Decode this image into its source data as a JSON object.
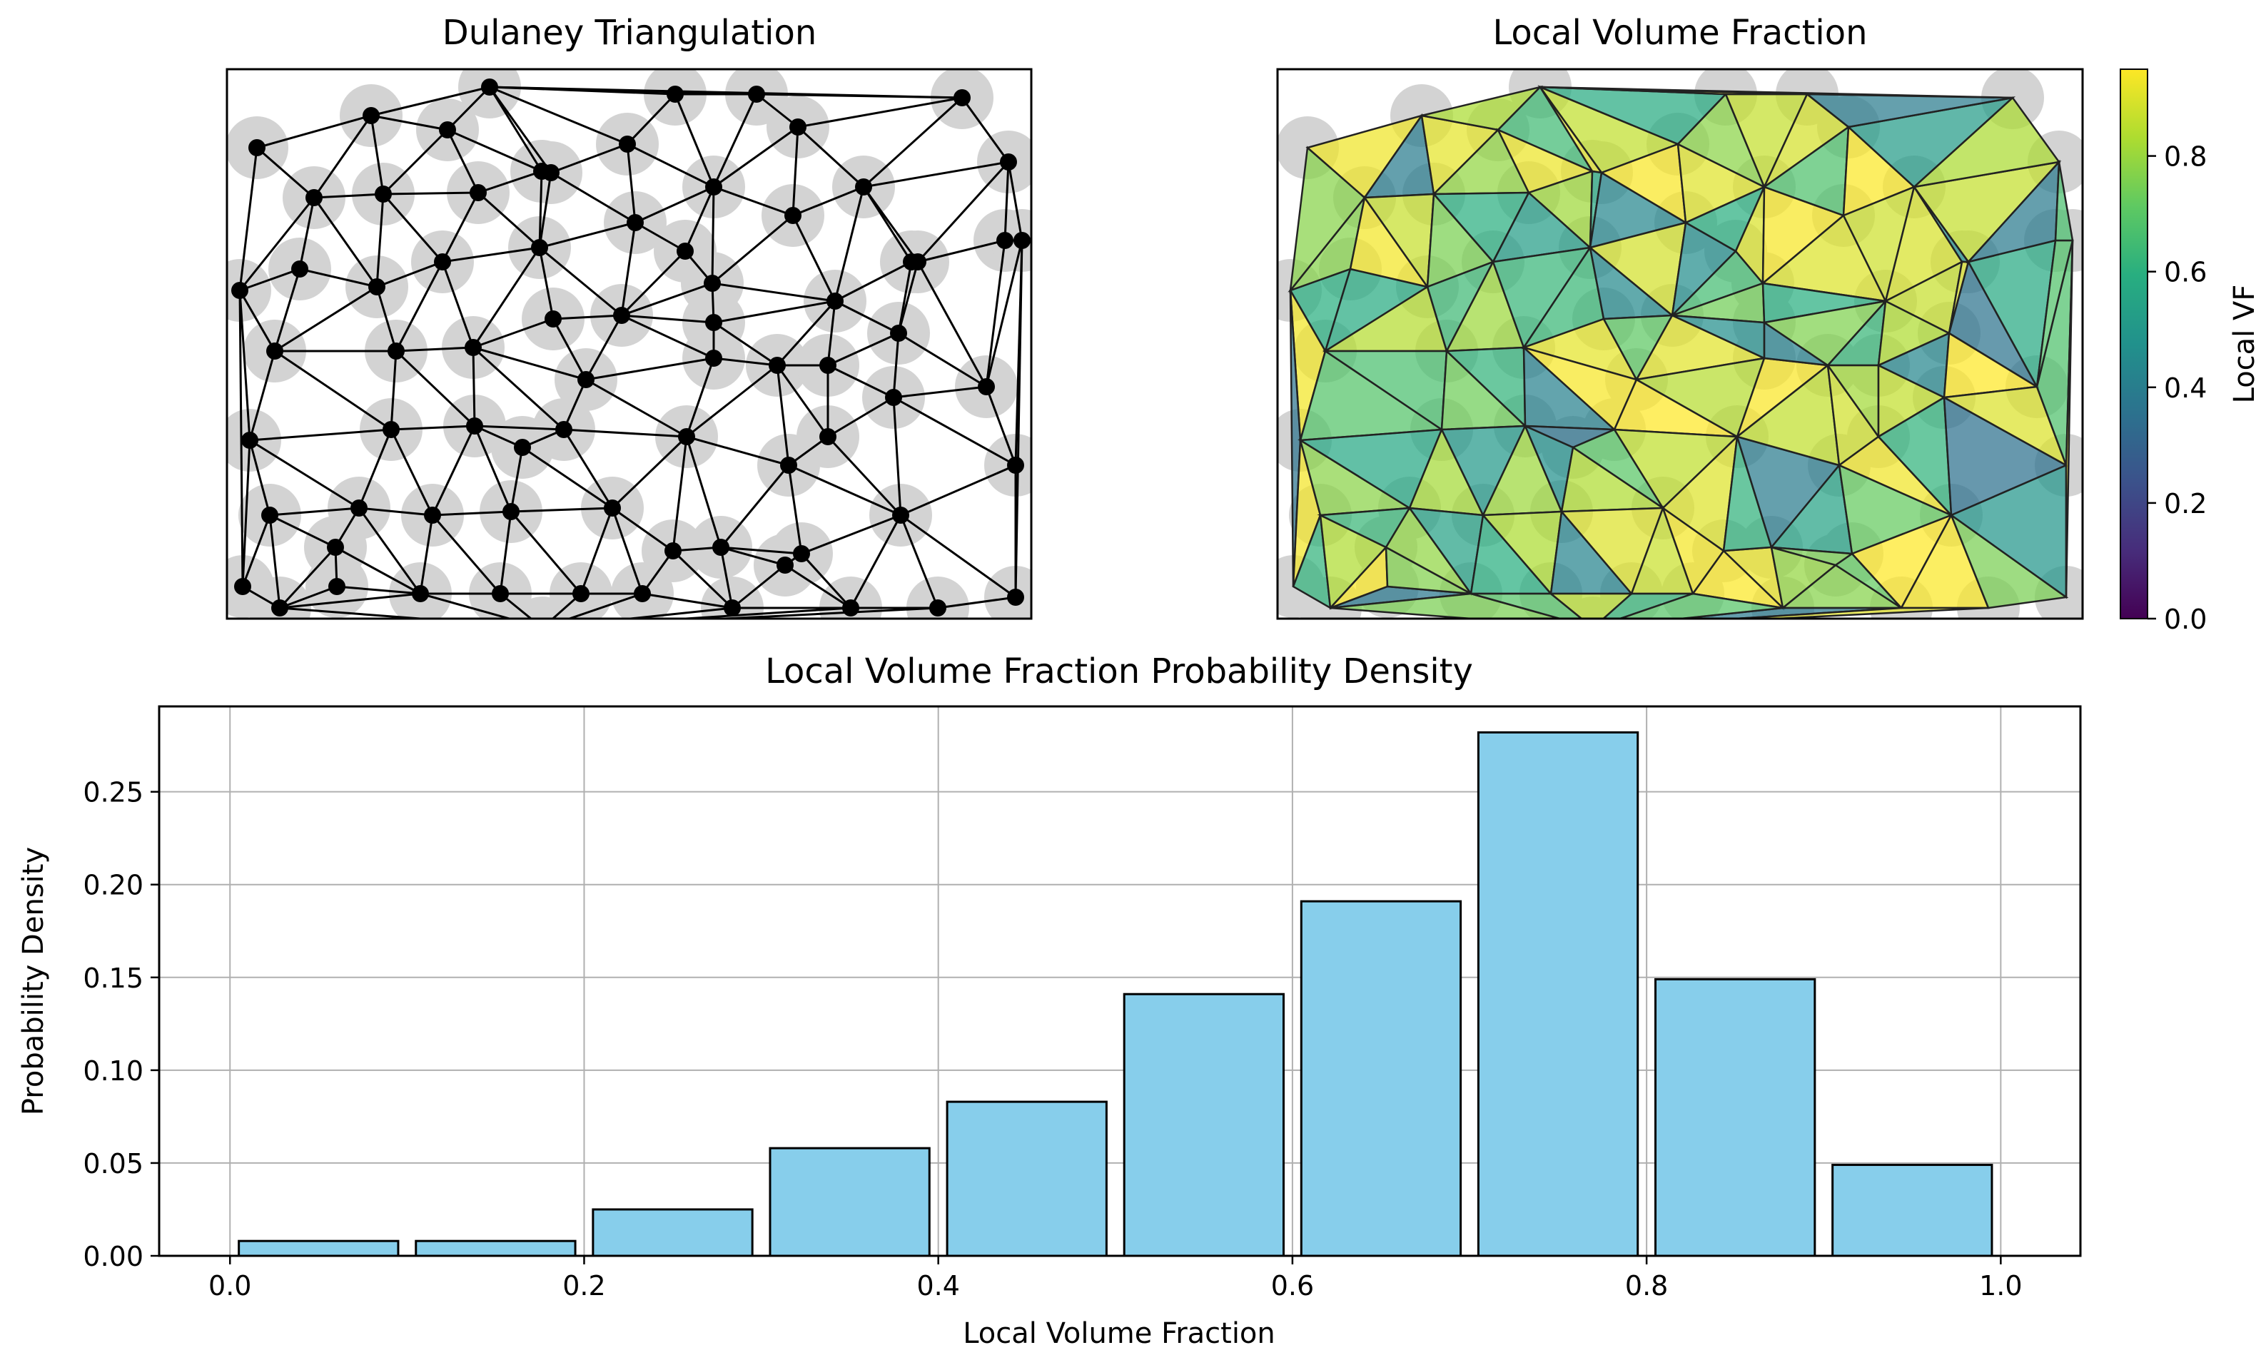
{
  "chart_data": [
    {
      "type": "network",
      "title": "Dulaney Triangulation",
      "xlabel": "",
      "ylabel": "",
      "colors": {
        "node": "#000000",
        "edge": "#000000",
        "particle": "#d3d3d3"
      }
    },
    {
      "type": "heatmap",
      "title": "Local Volume Fraction",
      "colorbar": {
        "label": "Local VF",
        "ticks": [
          "0.0",
          "0.2",
          "0.4",
          "0.6",
          "0.8"
        ],
        "range": [
          0,
          0.95
        ],
        "colormap": "viridis"
      }
    },
    {
      "type": "bar",
      "title": "Local Volume Fraction Probability Density",
      "xlabel": "Local Volume Fraction",
      "ylabel": "Probability Density",
      "bins": [
        [
          0.0,
          0.1
        ],
        [
          0.1,
          0.2
        ],
        [
          0.2,
          0.3
        ],
        [
          0.3,
          0.4
        ],
        [
          0.4,
          0.5
        ],
        [
          0.5,
          0.6
        ],
        [
          0.6,
          0.7
        ],
        [
          0.7,
          0.8
        ],
        [
          0.8,
          0.9
        ],
        [
          0.9,
          1.0
        ]
      ],
      "values": [
        0.008,
        0.008,
        0.025,
        0.058,
        0.083,
        0.141,
        0.191,
        0.282,
        0.149,
        0.049
      ],
      "xlim": [
        -0.04,
        1.045
      ],
      "ylim": [
        0,
        0.296
      ],
      "xticks": [
        "0.0",
        "0.2",
        "0.4",
        "0.6",
        "0.8",
        "1.0"
      ],
      "yticks": [
        "0.00",
        "0.05",
        "0.10",
        "0.15",
        "0.20",
        "0.25"
      ],
      "grid": true,
      "colors": {
        "bar": "#87ceeb",
        "edge": "#000000"
      }
    }
  ]
}
